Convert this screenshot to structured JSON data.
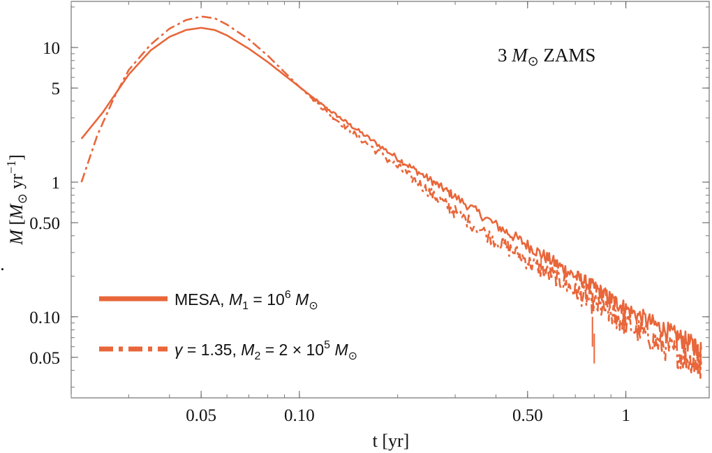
{
  "chart_data": {
    "type": "line",
    "title": "",
    "annotation": {
      "prefix": "3 ",
      "symbol": "M",
      "sub": "⊙",
      "suffix": " ZAMS"
    },
    "xlabel": "t [yr]",
    "ylabel": {
      "dot_symbol": "M",
      "bracket_open": " [",
      "unit_symbol": "M",
      "unit_sub": "⊙",
      "unit_text": " yr",
      "unit_exp": "−1",
      "bracket_close": "]"
    },
    "x_scale": "log",
    "y_scale": "log",
    "xlim": [
      0.02,
      1.8
    ],
    "ylim": [
      0.025,
      22
    ],
    "x_ticks": [
      {
        "value": 0.05,
        "label": "0.05"
      },
      {
        "value": 0.1,
        "label": "0.10"
      },
      {
        "value": 0.5,
        "label": "0.50"
      },
      {
        "value": 1,
        "label": "1"
      }
    ],
    "y_ticks": [
      {
        "value": 10,
        "label": "10"
      },
      {
        "value": 5,
        "label": "5"
      },
      {
        "value": 1,
        "label": "1"
      },
      {
        "value": 0.5,
        "label": "0.50"
      },
      {
        "value": 0.1,
        "label": "0.10"
      },
      {
        "value": 0.05,
        "label": "0.05"
      }
    ],
    "legend_position": "bottom-left",
    "series": [
      {
        "name": "MESA, M1 = 10^6 M⊙",
        "legend": {
          "text_a": "MESA, ",
          "sym": "M",
          "sub": "1",
          "mid": " = 10",
          "sup": "6",
          "tail_sym": " M",
          "tail_sub": "⊙"
        },
        "style": "solid",
        "color": "#E8663A",
        "x": [
          0.0215,
          0.025,
          0.03,
          0.035,
          0.04,
          0.045,
          0.05,
          0.055,
          0.06,
          0.07,
          0.08,
          0.1,
          0.12,
          0.15,
          0.2,
          0.25,
          0.3,
          0.4,
          0.5,
          0.6,
          0.7,
          0.8,
          0.9,
          1.0,
          1.2,
          1.4,
          1.6,
          1.7
        ],
        "y": [
          2.1,
          3.3,
          6.3,
          9.5,
          12.0,
          13.5,
          14.0,
          13.5,
          12.3,
          9.8,
          7.8,
          5.1,
          3.6,
          2.45,
          1.5,
          1.05,
          0.78,
          0.48,
          0.34,
          0.255,
          0.2,
          0.165,
          0.135,
          0.115,
          0.09,
          0.074,
          0.062,
          0.057
        ]
      },
      {
        "name": "γ = 1.35, M2 = 2 × 10^5 M⊙",
        "legend": {
          "text_a": "",
          "sym": "γ",
          "sub": "",
          "mid": " = 1.35, ",
          "sym2": "M",
          "sub2": "2",
          "mid2": " = 2 × 10",
          "sup": "5",
          "tail_sym": " M",
          "tail_sub": "⊙"
        },
        "style": "dashdot",
        "color": "#E8663A",
        "x": [
          0.0215,
          0.024,
          0.027,
          0.03,
          0.035,
          0.04,
          0.045,
          0.05,
          0.055,
          0.06,
          0.07,
          0.08,
          0.1,
          0.12,
          0.15,
          0.2,
          0.25,
          0.3,
          0.4,
          0.5,
          0.6,
          0.7,
          0.8,
          0.9,
          1.0,
          1.2,
          1.4,
          1.6,
          1.7
        ],
        "y": [
          1.0,
          2.2,
          4.2,
          6.8,
          10.5,
          13.8,
          16.0,
          17.0,
          16.5,
          14.8,
          11.5,
          8.7,
          5.1,
          3.4,
          2.2,
          1.3,
          0.85,
          0.6,
          0.37,
          0.26,
          0.2,
          0.155,
          0.125,
          0.105,
          0.088,
          0.068,
          0.055,
          0.047,
          0.044
        ]
      }
    ]
  }
}
